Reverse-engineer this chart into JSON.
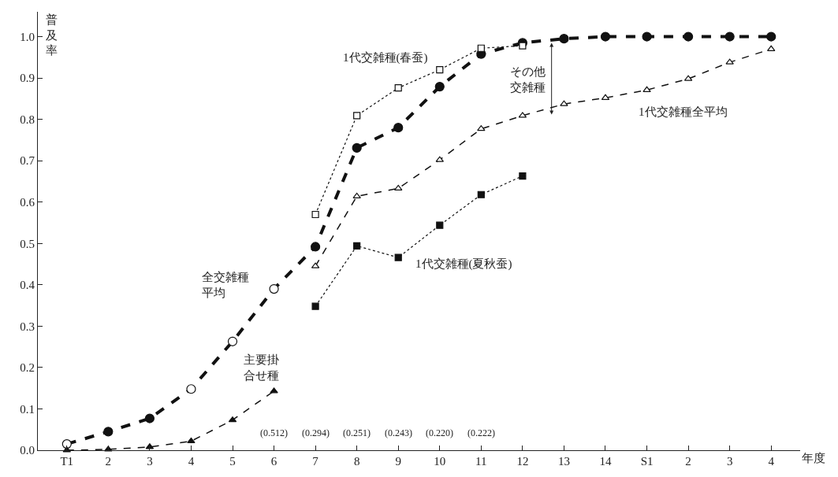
{
  "chart_data": {
    "type": "line",
    "xlabel": "年度",
    "ylabel": "普及率",
    "categories": [
      "T1",
      "2",
      "3",
      "4",
      "5",
      "6",
      "7",
      "8",
      "9",
      "10",
      "11",
      "12",
      "13",
      "14",
      "S1",
      "2",
      "3",
      "4"
    ],
    "ylim": [
      0,
      1.06
    ],
    "yticks": [
      {
        "value": 0,
        "label": "0.0"
      },
      0.1,
      0.2,
      0.3,
      0.4,
      0.5,
      0.6,
      0.7,
      0.8,
      0.9,
      {
        "value": 1,
        "label": "1.0"
      }
    ],
    "grid": false,
    "legend": false,
    "series": [
      {
        "name": "全交雑種平均",
        "color": "#111111",
        "line_style": "dashed",
        "marker": "circle",
        "colors": [
          "#ffffff",
          "#111111",
          "#111111",
          "#ffffff",
          "#ffffff",
          "#ffffff",
          "#111111",
          "#111111",
          "#111111",
          "#111111",
          "#111111",
          "#111111",
          "#111111",
          "#111111",
          "#111111",
          "#111111",
          "#111111",
          "#111111"
        ],
        "values": [
          0.015,
          0.045,
          0.077,
          0.148,
          0.263,
          0.39,
          0.492,
          0.731,
          0.78,
          0.879,
          0.958,
          0.985,
          0.995,
          1.0,
          1.0,
          1.0,
          1.0,
          1.0
        ]
      },
      {
        "name": "1代交雑種全平均",
        "color": "#111111",
        "line_style": "dashed",
        "marker": "triangle",
        "colors": [
          "#ffffff",
          "#ffffff",
          "#ffffff",
          "#ffffff",
          "#ffffff",
          "#ffffff",
          "#ffffff",
          "#ffffff",
          "#ffffff",
          "#ffffff",
          "#ffffff",
          "#ffffff",
          "#ffffff",
          "#ffffff",
          "#ffffff",
          "#ffffff",
          "#ffffff",
          "#ffffff"
        ],
        "values": [
          null,
          null,
          null,
          null,
          null,
          null,
          0.445,
          0.614,
          0.633,
          0.702,
          0.777,
          0.809,
          0.837,
          0.852,
          0.871,
          0.898,
          0.938,
          0.97
        ]
      },
      {
        "name": "1代交雑種(春蚕)",
        "color": "#111111",
        "line_style": "dotted",
        "marker": "square",
        "colors": [
          "#ffffff",
          "#ffffff",
          "#ffffff",
          "#ffffff",
          "#ffffff",
          "#ffffff",
          "#ffffff",
          "#ffffff",
          "#ffffff",
          "#ffffff",
          "#ffffff",
          "#ffffff",
          "#ffffff",
          "#ffffff",
          "#ffffff",
          "#ffffff",
          "#ffffff",
          "#ffffff"
        ],
        "values": [
          null,
          null,
          null,
          null,
          null,
          null,
          0.57,
          0.809,
          0.876,
          0.92,
          0.972,
          0.978,
          null,
          null,
          null,
          null,
          null,
          null
        ]
      },
      {
        "name": "1代交雑種(夏秋蚕)",
        "color": "#111111",
        "line_style": "dotted",
        "marker": "square",
        "colors": [
          "#111111",
          "#111111",
          "#111111",
          "#111111",
          "#111111",
          "#111111",
          "#111111",
          "#111111",
          "#111111",
          "#111111",
          "#111111",
          "#111111",
          "#111111",
          "#111111",
          "#111111",
          "#111111",
          "#111111",
          "#111111"
        ],
        "values": [
          null,
          null,
          null,
          null,
          null,
          null,
          0.348,
          0.494,
          0.466,
          0.544,
          0.618,
          0.663,
          null,
          null,
          null,
          null,
          null,
          null
        ]
      },
      {
        "name": "主要掛合せ種",
        "color": "#111111",
        "line_style": "dashed",
        "marker": "triangle",
        "colors": [
          "#111111",
          "#111111",
          "#111111",
          "#111111",
          "#111111",
          "#111111",
          "#111111",
          "#111111",
          "#111111",
          "#111111",
          "#111111",
          "#111111",
          "#111111",
          "#111111",
          "#111111",
          "#111111",
          "#111111",
          "#111111"
        ],
        "values": [
          0.0,
          0.002,
          0.008,
          0.022,
          0.073,
          0.143,
          null,
          null,
          null,
          null,
          null,
          null,
          null,
          null,
          null,
          null,
          null,
          null
        ]
      }
    ],
    "annotations": [
      "その他交雑種",
      "(0.512)",
      "(0.294)",
      "(0.251)",
      "(0.243)",
      "(0.220)",
      "(0.222)"
    ]
  }
}
